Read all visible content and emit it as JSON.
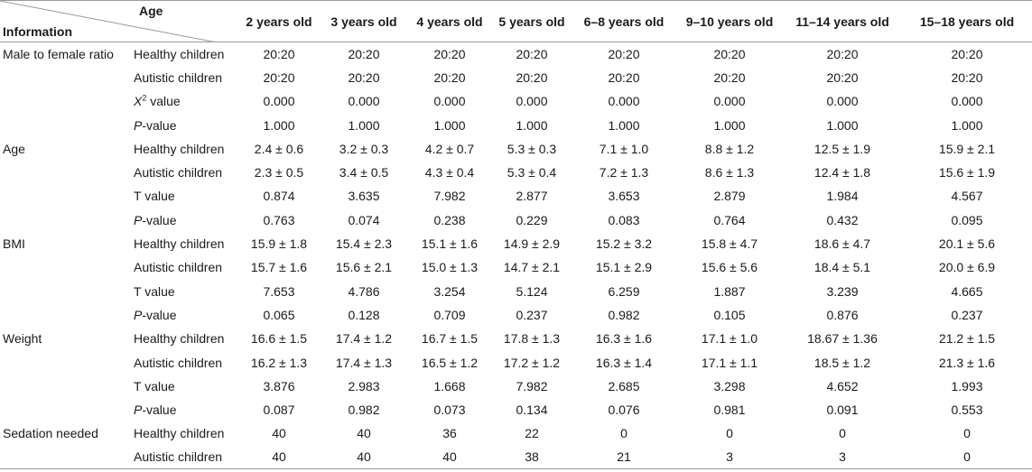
{
  "header": {
    "corner_top": "Age",
    "corner_bottom": "Information",
    "columns": [
      "2 years old",
      "3 years old",
      "4 years old",
      "5 years old",
      "6–8 years old",
      "9–10 years old",
      "11–14 years old",
      "15–18 years old"
    ]
  },
  "groups": [
    {
      "label": "Male to female ratio",
      "rows": [
        {
          "sub": "Healthy children",
          "values": [
            "20:20",
            "20:20",
            "20:20",
            "20:20",
            "20:20",
            "20:20",
            "20:20",
            "20:20"
          ]
        },
        {
          "sub": "Autistic children",
          "values": [
            "20:20",
            "20:20",
            "20:20",
            "20:20",
            "20:20",
            "20:20",
            "20:20",
            "20:20"
          ]
        },
        {
          "sub_italic": "X",
          "sub_sup": "2",
          "sub_rest": " value",
          "values": [
            "0.000",
            "0.000",
            "0.000",
            "0.000",
            "0.000",
            "0.000",
            "0.000",
            "0.000"
          ]
        },
        {
          "sub_italic": "P",
          "sub_rest": "-value",
          "values": [
            "1.000",
            "1.000",
            "1.000",
            "1.000",
            "1.000",
            "1.000",
            "1.000",
            "1.000"
          ]
        }
      ]
    },
    {
      "label": "Age",
      "rows": [
        {
          "sub": "Healthy children",
          "values": [
            "2.4 ± 0.6",
            "3.2 ± 0.3",
            "4.2 ± 0.7",
            "5.3 ± 0.3",
            "7.1 ± 1.0",
            "8.8 ± 1.2",
            "12.5 ± 1.9",
            "15.9 ± 2.1"
          ]
        },
        {
          "sub": "Autistic children",
          "values": [
            "2.3 ± 0.5",
            "3.4 ± 0.5",
            "4.3 ± 0.4",
            "5.3 ± 0.4",
            "7.2 ± 1.3",
            "8.6 ± 1.3",
            "12.4 ± 1.8",
            "15.6 ± 1.9"
          ]
        },
        {
          "sub": "T value",
          "values": [
            "0.874",
            "3.635",
            "7.982",
            "2.877",
            "3.653",
            "2.879",
            "1.984",
            "4.567"
          ]
        },
        {
          "sub_italic": "P",
          "sub_rest": "-value",
          "values": [
            "0.763",
            "0.074",
            "0.238",
            "0.229",
            "0.083",
            "0.764",
            "0.432",
            "0.095"
          ]
        }
      ]
    },
    {
      "label": "BMI",
      "rows": [
        {
          "sub": "Healthy children",
          "values": [
            "15.9 ± 1.8",
            "15.4 ± 2.3",
            "15.1 ± 1.6",
            "14.9 ± 2.9",
            "15.2 ± 3.2",
            "15.8 ± 4.7",
            "18.6 ± 4.7",
            "20.1 ± 5.6"
          ]
        },
        {
          "sub": "Autistic children",
          "values": [
            "15.7 ± 1.6",
            "15.6 ± 2.1",
            "15.0 ± 1.3",
            "14.7 ± 2.1",
            "15.1 ± 2.9",
            "15.6 ± 5.6",
            "18.4 ± 5.1",
            "20.0 ± 6.9"
          ]
        },
        {
          "sub": "T value",
          "values": [
            "7.653",
            "4.786",
            "3.254",
            "5.124",
            "6.259",
            "1.887",
            "3.239",
            "4.665"
          ]
        },
        {
          "sub_italic": "P",
          "sub_rest": "-value",
          "values": [
            "0.065",
            "0.128",
            "0.709",
            "0.237",
            "0.982",
            "0.105",
            "0.876",
            "0.237"
          ]
        }
      ]
    },
    {
      "label": "Weight",
      "rows": [
        {
          "sub": "Healthy children",
          "values": [
            "16.6 ± 1.5",
            "17.4 ± 1.2",
            "16.7 ± 1.5",
            "17.8 ± 1.3",
            "16.3 ± 1.6",
            "17.1 ± 1.0",
            "18.67 ± 1.36",
            "21.2 ± 1.5"
          ]
        },
        {
          "sub": "Autistic children",
          "values": [
            "16.2 ± 1.3",
            "17.4 ± 1.3",
            "16.5 ± 1.2",
            "17.2 ± 1.2",
            "16.3 ± 1.4",
            "17.1 ± 1.1",
            "18.5 ± 1.2",
            "21.3 ± 1.6"
          ]
        },
        {
          "sub": "T value",
          "values": [
            "3.876",
            "2.983",
            "1.668",
            "7.982",
            "2.685",
            "3.298",
            "4.652",
            "1.993"
          ]
        },
        {
          "sub_italic": "P",
          "sub_rest": "-value",
          "values": [
            "0.087",
            "0.982",
            "0.073",
            "0.134",
            "0.076",
            "0.981",
            "0.091",
            "0.553"
          ]
        }
      ]
    },
    {
      "label": "Sedation needed",
      "rows": [
        {
          "sub": "Healthy children",
          "values": [
            "40",
            "40",
            "36",
            "22",
            "0",
            "0",
            "0",
            "0"
          ]
        },
        {
          "sub": "Autistic children",
          "values": [
            "40",
            "40",
            "40",
            "38",
            "21",
            "3",
            "3",
            "0"
          ]
        }
      ]
    }
  ]
}
